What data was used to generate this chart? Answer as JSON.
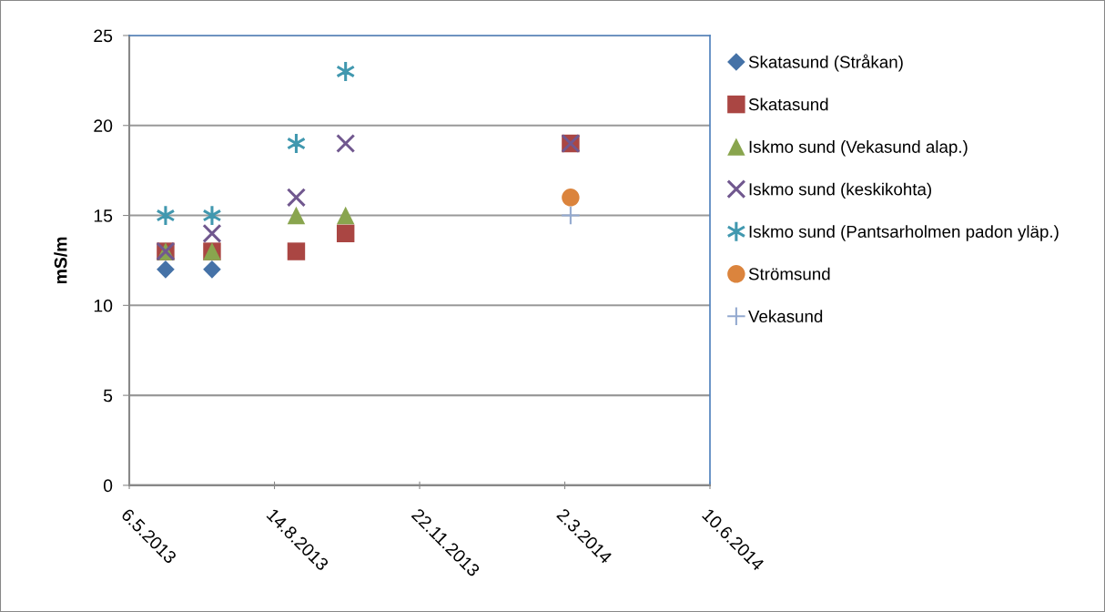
{
  "chart_data": {
    "type": "scatter",
    "ylabel": "mS/m",
    "xlim": [
      "2013-05-06",
      "2014-06-10"
    ],
    "xticks": [
      {
        "value": "2013-05-06",
        "label": "6.5.2013"
      },
      {
        "value": "2013-08-14",
        "label": "14.8.2013"
      },
      {
        "value": "2013-11-22",
        "label": "22.11.2013"
      },
      {
        "value": "2014-03-02",
        "label": "2.3.2014"
      },
      {
        "value": "2014-06-10",
        "label": "10.6.2014"
      }
    ],
    "ylim": [
      0,
      25
    ],
    "yticks": [
      0,
      5,
      10,
      15,
      20,
      25
    ],
    "grid": "y",
    "legend": "right",
    "series": [
      {
        "name": "Skatasund (Stråkan)",
        "color": "#4572a7",
        "marker": "diamond",
        "x": [
          "2013-05-31",
          "2013-07-02"
        ],
        "values": [
          12,
          12
        ]
      },
      {
        "name": "Skatasund",
        "color": "#aa4643",
        "marker": "square",
        "x": [
          "2013-05-31",
          "2013-07-02",
          "2013-08-29",
          "2013-10-02",
          "2014-03-06"
        ],
        "values": [
          13,
          13,
          13,
          14,
          19
        ]
      },
      {
        "name": "Iskmo sund (Vekasund alap.)",
        "color": "#89a54e",
        "marker": "triangle",
        "x": [
          "2013-05-31",
          "2013-07-02",
          "2013-08-29",
          "2013-10-02"
        ],
        "values": [
          13,
          13,
          15,
          15
        ]
      },
      {
        "name": "Iskmo sund (keskikohta)",
        "color": "#71588f",
        "marker": "x",
        "x": [
          "2013-05-31",
          "2013-07-02",
          "2013-08-29",
          "2013-10-02",
          "2014-03-06"
        ],
        "values": [
          13,
          14,
          16,
          19,
          19
        ]
      },
      {
        "name": "Iskmo sund (Pantsarholmen padon yläp.)",
        "color": "#4198af",
        "marker": "cross",
        "x": [
          "2013-05-31",
          "2013-07-02",
          "2013-08-29",
          "2013-10-02"
        ],
        "values": [
          15,
          15,
          19,
          23
        ]
      },
      {
        "name": "Strömsund",
        "color": "#db843d",
        "marker": "circle",
        "x": [
          "2014-03-06"
        ],
        "values": [
          16
        ]
      },
      {
        "name": "Vekasund",
        "color": "#93a9cf",
        "marker": "plus",
        "x": [
          "2014-03-06"
        ],
        "values": [
          15
        ]
      }
    ]
  }
}
